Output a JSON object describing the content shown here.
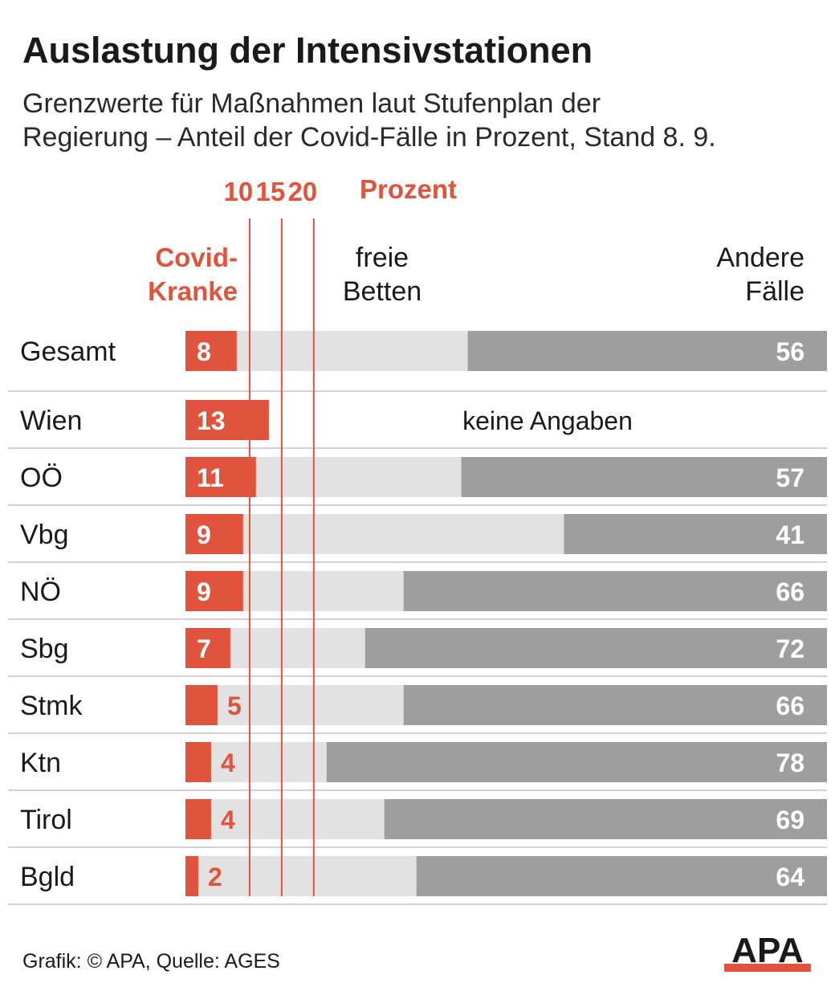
{
  "title": "Auslastung der Intensivstationen",
  "subtitle_line1": "Grenzwerte für Maßnahmen laut Stufenplan der",
  "subtitle_line2": "Regierung – Anteil der Covid-Fälle in Prozent, Stand 8. 9.",
  "thresholds_unit_label": "Prozent",
  "header": {
    "covid_line1": "Covid-",
    "covid_line2": "Kranke",
    "free_line1": "freie",
    "free_line2": "Betten",
    "other_line1": "Andere",
    "other_line2": "Fälle"
  },
  "no_data_label": "keine Angaben",
  "footer": "Grafik: © APA, Quelle: AGES",
  "logo": "APA",
  "colors": {
    "covid": "#e0533d",
    "free": "#e2e2e2",
    "other": "#9e9e9e",
    "divider": "#d2d2d2"
  },
  "chart_data": {
    "type": "bar",
    "orientation": "horizontal",
    "stacked": true,
    "title": "Auslastung der Intensivstationen",
    "xlim": [
      0,
      100
    ],
    "thresholds": [
      10,
      15,
      20
    ],
    "threshold_labels": [
      "10",
      "15",
      "20"
    ],
    "categories": [
      "Gesamt",
      "Wien",
      "OÖ",
      "Vbg",
      "NÖ",
      "Sbg",
      "Stmk",
      "Ktn",
      "Tirol",
      "Bgld"
    ],
    "series": [
      {
        "name": "Covid-Kranke",
        "values": [
          8,
          13,
          11,
          9,
          9,
          7,
          5,
          4,
          4,
          2
        ]
      },
      {
        "name": "freie Betten",
        "values": [
          36,
          null,
          32,
          50,
          25,
          21,
          29,
          18,
          27,
          34
        ]
      },
      {
        "name": "Andere Fälle",
        "values": [
          56,
          null,
          57,
          41,
          66,
          72,
          66,
          78,
          69,
          64
        ]
      }
    ],
    "no_data": [
      false,
      true,
      false,
      false,
      false,
      false,
      false,
      false,
      false,
      false
    ]
  }
}
